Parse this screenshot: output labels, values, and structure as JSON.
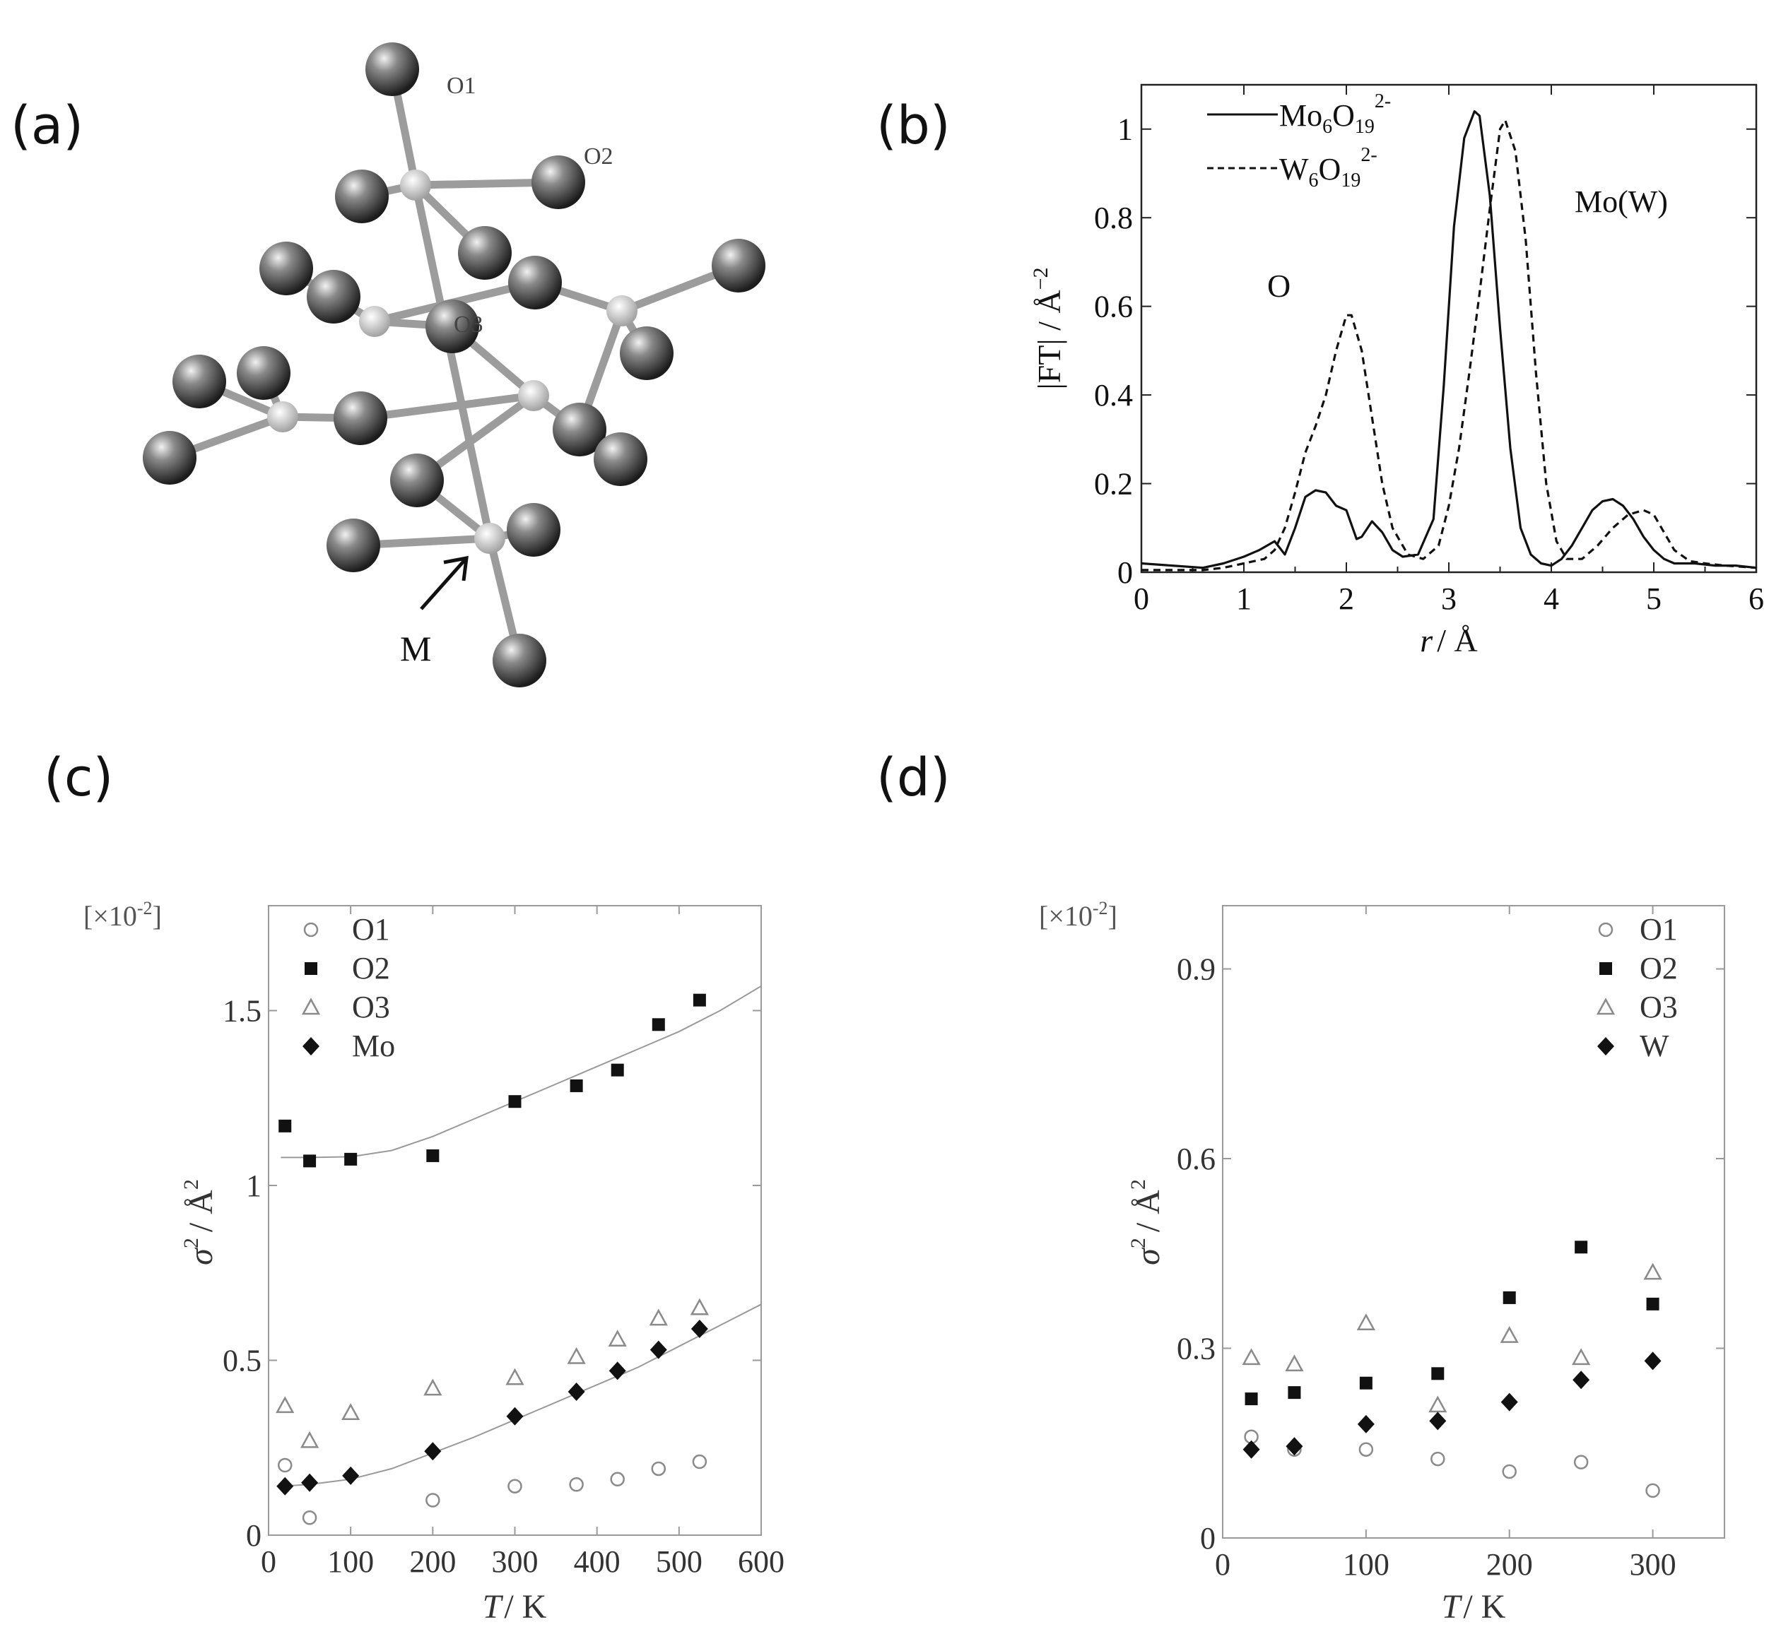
{
  "panels": {
    "a": "(a)",
    "b": "(b)",
    "c": "(c)",
    "d": "(d)"
  },
  "molecule": {
    "labels": {
      "o1": "O1",
      "o2": "O2",
      "o3": "O3",
      "m": "M"
    }
  },
  "colors": {
    "ink": "#111111",
    "gray": "#8a8a8a",
    "axis": "#9a9a9a"
  },
  "chart_data": [
    {
      "id": "b",
      "type": "line",
      "xlabel_italic": "r",
      "xlabel_unit": "/ Å",
      "ylabel": "|FT| / Å",
      "ylabel_sup": "−2",
      "xlim": [
        0,
        6
      ],
      "ylim": [
        0,
        1.1
      ],
      "xticks": [
        "0",
        "1",
        "2",
        "3",
        "4",
        "5",
        "6"
      ],
      "yticks": [
        "0",
        "0.2",
        "0.4",
        "0.6",
        "0.8",
        "1"
      ],
      "annotations": {
        "o": "O",
        "mow": "Mo(W)"
      },
      "legend": [
        {
          "base": "Mo",
          "sub1": "6",
          "mid": "O",
          "sub2": "19",
          "sup": "2-",
          "style": "solid"
        },
        {
          "base": "W",
          "sub1": "6",
          "mid": "O",
          "sub2": "19",
          "sup": "2-",
          "style": "dashed"
        }
      ],
      "series": [
        {
          "name": "Mo6O19 2-",
          "style": "solid",
          "x": [
            0.0,
            0.3,
            0.6,
            0.8,
            1.0,
            1.15,
            1.3,
            1.4,
            1.5,
            1.6,
            1.7,
            1.8,
            1.9,
            2.0,
            2.1,
            2.15,
            2.25,
            2.35,
            2.45,
            2.55,
            2.7,
            2.85,
            2.95,
            3.05,
            3.15,
            3.25,
            3.3,
            3.4,
            3.5,
            3.6,
            3.7,
            3.8,
            3.9,
            4.0,
            4.1,
            4.2,
            4.3,
            4.4,
            4.5,
            4.6,
            4.7,
            4.8,
            4.9,
            5.0,
            5.1,
            5.2,
            5.4,
            5.6,
            5.8,
            6.0
          ],
          "y": [
            0.02,
            0.015,
            0.01,
            0.02,
            0.035,
            0.05,
            0.07,
            0.04,
            0.1,
            0.17,
            0.185,
            0.18,
            0.15,
            0.14,
            0.075,
            0.08,
            0.115,
            0.09,
            0.05,
            0.035,
            0.04,
            0.12,
            0.42,
            0.78,
            0.98,
            1.04,
            1.03,
            0.85,
            0.55,
            0.28,
            0.1,
            0.04,
            0.02,
            0.015,
            0.03,
            0.06,
            0.1,
            0.14,
            0.16,
            0.165,
            0.15,
            0.12,
            0.08,
            0.05,
            0.03,
            0.02,
            0.02,
            0.015,
            0.015,
            0.01
          ]
        },
        {
          "name": "W6O19 2-",
          "style": "dashed",
          "x": [
            0.0,
            0.3,
            0.6,
            0.8,
            1.0,
            1.2,
            1.3,
            1.4,
            1.5,
            1.6,
            1.7,
            1.8,
            1.9,
            2.0,
            2.05,
            2.15,
            2.25,
            2.35,
            2.45,
            2.6,
            2.75,
            2.9,
            3.0,
            3.1,
            3.2,
            3.3,
            3.4,
            3.5,
            3.55,
            3.65,
            3.75,
            3.85,
            3.95,
            4.05,
            4.15,
            4.3,
            4.45,
            4.6,
            4.75,
            4.9,
            5.0,
            5.1,
            5.2,
            5.35,
            5.5,
            5.7,
            6.0
          ],
          "y": [
            0.005,
            0.005,
            0.005,
            0.01,
            0.02,
            0.03,
            0.05,
            0.1,
            0.18,
            0.27,
            0.33,
            0.4,
            0.5,
            0.58,
            0.58,
            0.5,
            0.35,
            0.2,
            0.1,
            0.04,
            0.03,
            0.06,
            0.15,
            0.28,
            0.45,
            0.63,
            0.82,
            1.0,
            1.02,
            0.95,
            0.75,
            0.45,
            0.2,
            0.07,
            0.03,
            0.03,
            0.06,
            0.1,
            0.13,
            0.14,
            0.13,
            0.09,
            0.05,
            0.025,
            0.02,
            0.015,
            0.01
          ]
        }
      ]
    },
    {
      "id": "c",
      "type": "scatter",
      "multiplier": "[×10",
      "multiplier_sup": "-2",
      "multiplier_close": "]",
      "xlabel_italic": "T",
      "xlabel_unit": "/ K",
      "ylabel_italic": "σ",
      "ylabel_sup": "2",
      "ylabel_unit": "/ Å",
      "ylabel_unit_sup": "2",
      "xlim": [
        0,
        600
      ],
      "ylim": [
        0,
        1.8
      ],
      "xticks": [
        "0",
        "100",
        "200",
        "300",
        "400",
        "500",
        "600"
      ],
      "yticks": [
        "0",
        "0.5",
        "1",
        "1.5"
      ],
      "legend_position": "top-left",
      "series": [
        {
          "name": "O1",
          "marker": "circle-open",
          "x": [
            20,
            50,
            200,
            300,
            375,
            425,
            475,
            525
          ],
          "y": [
            0.2,
            0.05,
            0.1,
            0.14,
            0.145,
            0.16,
            0.19,
            0.21
          ]
        },
        {
          "name": "O2",
          "marker": "square-filled",
          "x": [
            20,
            50,
            100,
            200,
            300,
            375,
            425,
            475,
            525
          ],
          "y": [
            1.17,
            1.07,
            1.075,
            1.085,
            1.24,
            1.285,
            1.33,
            1.46,
            1.53
          ]
        },
        {
          "name": "O3",
          "marker": "triangle-open",
          "x": [
            20,
            50,
            100,
            200,
            300,
            375,
            425,
            475,
            525
          ],
          "y": [
            0.37,
            0.27,
            0.35,
            0.42,
            0.45,
            0.51,
            0.56,
            0.62,
            0.65
          ]
        },
        {
          "name": "Mo",
          "marker": "diamond-filled",
          "x": [
            20,
            50,
            100,
            200,
            300,
            375,
            425,
            475,
            525
          ],
          "y": [
            0.14,
            0.15,
            0.17,
            0.24,
            0.34,
            0.41,
            0.47,
            0.53,
            0.59
          ]
        }
      ],
      "fits": [
        {
          "x": [
            15,
            50,
            100,
            150,
            200,
            250,
            300,
            350,
            400,
            450,
            500,
            550,
            600
          ],
          "y": [
            1.08,
            1.08,
            1.082,
            1.1,
            1.14,
            1.19,
            1.24,
            1.29,
            1.34,
            1.39,
            1.44,
            1.5,
            1.57
          ]
        },
        {
          "x": [
            15,
            50,
            100,
            150,
            200,
            250,
            300,
            350,
            400,
            450,
            500,
            550,
            600
          ],
          "y": [
            0.14,
            0.145,
            0.16,
            0.19,
            0.235,
            0.28,
            0.33,
            0.38,
            0.43,
            0.48,
            0.54,
            0.6,
            0.66
          ]
        }
      ]
    },
    {
      "id": "d",
      "type": "scatter",
      "multiplier": "[×10",
      "multiplier_sup": "-2",
      "multiplier_close": "]",
      "xlabel_italic": "T",
      "xlabel_unit": "/ K",
      "ylabel_italic": "σ",
      "ylabel_sup": "2",
      "ylabel_unit": "/ Å",
      "ylabel_unit_sup": "2",
      "xlim": [
        0,
        350
      ],
      "ylim": [
        0,
        1.0
      ],
      "xticks": [
        "0",
        "100",
        "200",
        "300"
      ],
      "ytick_values": [
        0,
        0.3,
        0.6,
        0.9
      ],
      "yticks": [
        "0",
        "0.3",
        "0.6",
        "0.9"
      ],
      "legend_position": "top-right",
      "series": [
        {
          "name": "O1",
          "marker": "circle-open",
          "x": [
            20,
            50,
            100,
            150,
            200,
            250,
            300
          ],
          "y": [
            0.16,
            0.14,
            0.14,
            0.125,
            0.105,
            0.12,
            0.075
          ]
        },
        {
          "name": "O2",
          "marker": "square-filled",
          "x": [
            20,
            50,
            100,
            150,
            200,
            250,
            300
          ],
          "y": [
            0.22,
            0.23,
            0.245,
            0.26,
            0.38,
            0.46,
            0.37
          ]
        },
        {
          "name": "O3",
          "marker": "triangle-open",
          "x": [
            20,
            50,
            100,
            150,
            200,
            250,
            300
          ],
          "y": [
            0.285,
            0.275,
            0.34,
            0.21,
            0.32,
            0.285,
            0.42
          ]
        },
        {
          "name": "W",
          "marker": "diamond-filled",
          "x": [
            20,
            50,
            100,
            150,
            200,
            250,
            300
          ],
          "y": [
            0.14,
            0.145,
            0.18,
            0.185,
            0.215,
            0.25,
            0.28
          ]
        }
      ]
    }
  ]
}
